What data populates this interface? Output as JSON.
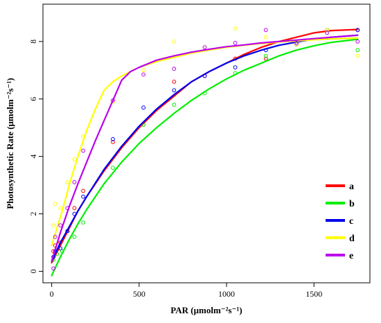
{
  "chart_data": {
    "type": "scatter",
    "title": "",
    "xlabel": "PAR (μmolm⁻²s⁻¹)",
    "ylabel": "Photosynthetic Rate (μmolm⁻²s⁻¹)",
    "xlim": [
      -50,
      1820
    ],
    "ylim": [
      -0.4,
      9.3
    ],
    "xticks": [
      0,
      500,
      1000,
      1500
    ],
    "yticks": [
      0,
      2,
      4,
      6,
      8
    ],
    "grid": false,
    "legend_position": "bottom-right",
    "series": [
      {
        "name": "a",
        "color": "#ff0000",
        "points_x": [
          10,
          20,
          50,
          90,
          130,
          180,
          350,
          525,
          700,
          875,
          1050,
          1225,
          1400,
          1575,
          1750
        ],
        "points_y": [
          0.7,
          0.9,
          1.0,
          1.4,
          2.2,
          2.8,
          4.5,
          5.1,
          6.6,
          6.8,
          7.4,
          7.4,
          7.9,
          8.4,
          8.4
        ],
        "curve_x": [
          0,
          50,
          100,
          150,
          200,
          300,
          400,
          500,
          600,
          700,
          800,
          900,
          1000,
          1100,
          1200,
          1300,
          1400,
          1500,
          1600,
          1750
        ],
        "curve_y": [
          0.3,
          0.9,
          1.5,
          2.1,
          2.6,
          3.5,
          4.3,
          5.0,
          5.6,
          6.1,
          6.6,
          6.95,
          7.25,
          7.55,
          7.8,
          8.0,
          8.15,
          8.3,
          8.38,
          8.42
        ]
      },
      {
        "name": "b",
        "color": "#00ee00",
        "points_x": [
          10,
          30,
          60,
          90,
          130,
          180,
          350,
          525,
          700,
          875,
          1050,
          1225,
          1400,
          1575,
          1750
        ],
        "points_y": [
          0.4,
          0.6,
          0.7,
          1.4,
          1.2,
          1.7,
          3.6,
          5.1,
          5.8,
          6.2,
          6.9,
          7.5,
          7.9,
          8.4,
          7.7
        ],
        "curve_x": [
          0,
          50,
          100,
          150,
          200,
          300,
          400,
          500,
          600,
          700,
          800,
          900,
          1000,
          1100,
          1200,
          1300,
          1400,
          1500,
          1600,
          1750
        ],
        "curve_y": [
          -0.15,
          0.5,
          1.1,
          1.65,
          2.15,
          3.05,
          3.8,
          4.45,
          5.0,
          5.5,
          5.95,
          6.35,
          6.7,
          7.0,
          7.25,
          7.5,
          7.7,
          7.85,
          7.97,
          8.08
        ]
      },
      {
        "name": "c",
        "color": "#0000ee",
        "points_x": [
          10,
          20,
          50,
          90,
          130,
          180,
          350,
          525,
          700,
          875,
          1050,
          1225,
          1400,
          1575,
          1750
        ],
        "points_y": [
          0.5,
          0.7,
          0.8,
          1.4,
          2.0,
          2.6,
          4.6,
          5.7,
          6.3,
          6.8,
          7.1,
          7.7,
          7.9,
          8.4,
          8.4
        ],
        "curve_x": [
          0,
          50,
          100,
          150,
          200,
          300,
          400,
          500,
          600,
          700,
          800,
          900,
          1000,
          1100,
          1200,
          1300,
          1400,
          1500,
          1600,
          1750
        ],
        "curve_y": [
          0.35,
          1.0,
          1.55,
          2.1,
          2.6,
          3.55,
          4.35,
          5.05,
          5.65,
          6.15,
          6.6,
          6.95,
          7.25,
          7.5,
          7.7,
          7.87,
          7.98,
          8.08,
          8.15,
          8.22
        ]
      },
      {
        "name": "d",
        "color": "#ffff00",
        "points_x": [
          10,
          20,
          50,
          90,
          130,
          180,
          350,
          525,
          700,
          875,
          1050,
          1225,
          1400,
          1575,
          1750
        ],
        "points_y": [
          1.6,
          2.35,
          2.2,
          3.1,
          3.9,
          4.7,
          5.9,
          7.0,
          8.0,
          7.8,
          8.45,
          8.15,
          7.9,
          8.4,
          7.5
        ],
        "curve_x": [
          0,
          30,
          60,
          100,
          150,
          200,
          250,
          300,
          350,
          400,
          500,
          600,
          700,
          800,
          900,
          1000,
          1100,
          1200,
          1300,
          1400,
          1500,
          1600,
          1750
        ],
        "curve_y": [
          0.9,
          1.5,
          2.1,
          3.0,
          4.0,
          4.9,
          5.65,
          6.3,
          6.6,
          6.8,
          7.1,
          7.3,
          7.45,
          7.6,
          7.7,
          7.8,
          7.87,
          7.93,
          7.98,
          8.02,
          8.06,
          8.09,
          8.12
        ]
      },
      {
        "name": "e",
        "color": "#bb00ee",
        "points_x": [
          10,
          20,
          50,
          90,
          130,
          180,
          350,
          525,
          700,
          875,
          1050,
          1225,
          1400,
          1575,
          1750
        ],
        "points_y": [
          0.1,
          1.2,
          1.6,
          2.2,
          3.1,
          4.2,
          5.95,
          6.85,
          7.05,
          7.8,
          7.95,
          8.4,
          7.95,
          8.3,
          8.0
        ],
        "curve_x": [
          0,
          50,
          100,
          150,
          200,
          250,
          300,
          350,
          400,
          450,
          500,
          600,
          700,
          800,
          900,
          1000,
          1100,
          1200,
          1300,
          1400,
          1500,
          1600,
          1750
        ],
        "curve_y": [
          0.35,
          1.35,
          2.25,
          3.05,
          3.8,
          4.55,
          5.25,
          5.95,
          6.65,
          6.95,
          7.1,
          7.35,
          7.5,
          7.63,
          7.73,
          7.82,
          7.88,
          7.95,
          8.0,
          8.05,
          8.1,
          8.15,
          8.22
        ]
      }
    ]
  }
}
